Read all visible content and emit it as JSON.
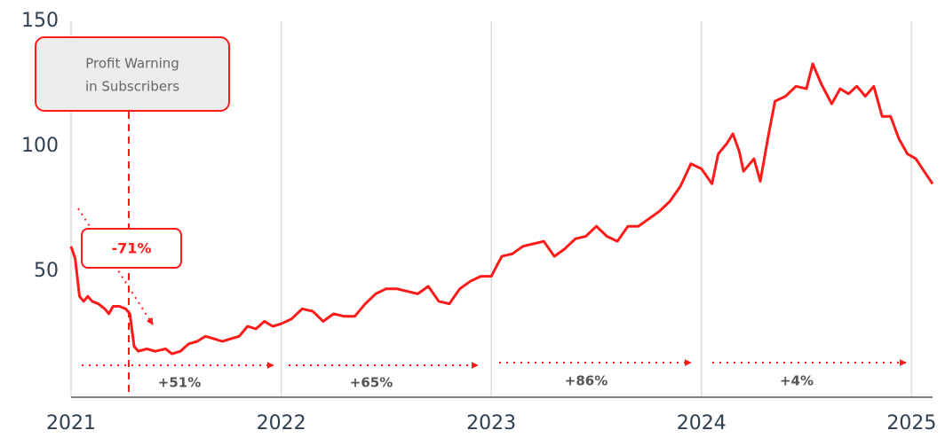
{
  "chart_data": {
    "type": "line",
    "x": [
      2021.0,
      2021.02,
      2021.04,
      2021.06,
      2021.08,
      2021.1,
      2021.13,
      2021.16,
      2021.18,
      2021.2,
      2021.23,
      2021.26,
      2021.28,
      2021.3,
      2021.32,
      2021.36,
      2021.4,
      2021.45,
      2021.48,
      2021.52,
      2021.56,
      2021.6,
      2021.64,
      2021.68,
      2021.72,
      2021.76,
      2021.8,
      2021.84,
      2021.88,
      2021.92,
      2021.96,
      2022.0,
      2022.05,
      2022.1,
      2022.15,
      2022.2,
      2022.25,
      2022.3,
      2022.35,
      2022.4,
      2022.45,
      2022.5,
      2022.55,
      2022.6,
      2022.65,
      2022.7,
      2022.75,
      2022.8,
      2022.85,
      2022.9,
      2022.95,
      2023.0,
      2023.05,
      2023.1,
      2023.15,
      2023.2,
      2023.25,
      2023.3,
      2023.35,
      2023.4,
      2023.45,
      2023.5,
      2023.55,
      2023.6,
      2023.65,
      2023.7,
      2023.75,
      2023.8,
      2023.85,
      2023.9,
      2023.95,
      2024.0,
      2024.05,
      2024.08,
      2024.12,
      2024.15,
      2024.18,
      2024.2,
      2024.25,
      2024.28,
      2024.32,
      2024.35,
      2024.4,
      2024.45,
      2024.5,
      2024.53,
      2024.57,
      2024.62,
      2024.66,
      2024.7,
      2024.74,
      2024.78,
      2024.82,
      2024.86,
      2024.9,
      2024.94,
      2024.98,
      2025.02,
      2025.06,
      2025.1
    ],
    "values": [
      60,
      55,
      40,
      38,
      40,
      38,
      37,
      35,
      33,
      36,
      36,
      35,
      33,
      20,
      18,
      19,
      18,
      19,
      17,
      18,
      21,
      22,
      24,
      23,
      22,
      23,
      24,
      28,
      27,
      30,
      28,
      29,
      31,
      35,
      34,
      30,
      33,
      32,
      32,
      37,
      41,
      43,
      43,
      42,
      41,
      44,
      38,
      37,
      43,
      46,
      48,
      48,
      56,
      57,
      60,
      61,
      62,
      56,
      59,
      63,
      64,
      68,
      64,
      62,
      68,
      68,
      71,
      74,
      78,
      84,
      93,
      91,
      85,
      97,
      101,
      105,
      98,
      90,
      95,
      86,
      105,
      118,
      120,
      124,
      123,
      133,
      125,
      117,
      123,
      121,
      124,
      120,
      124,
      112,
      112,
      103,
      97,
      95,
      90,
      85
    ],
    "color": "#ff1a1a",
    "xlim": [
      2021,
      2025.1
    ],
    "xticks": [
      2021,
      2022,
      2023,
      2024,
      2025
    ],
    "ylim": [
      0,
      150
    ],
    "yticks": [
      50,
      100,
      150
    ],
    "grid": true,
    "annotations": [
      "Profit Warning",
      "in Subscribers",
      "-71%",
      "+51%",
      "+65%",
      "+86%",
      "+4%"
    ]
  }
}
